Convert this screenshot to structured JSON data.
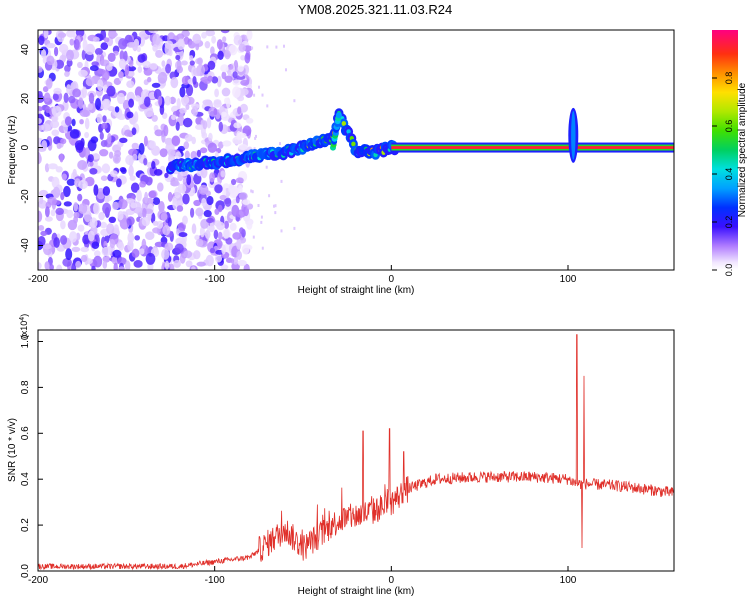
{
  "title": "YM08.2025.321.11.03.R24",
  "chart_data": [
    {
      "type": "heatmap",
      "title": "YM08.2025.321.11.03.R24",
      "xlabel": "Height of straight line (km)",
      "ylabel": "Frequency (Hz)",
      "xlim": [
        -200,
        160
      ],
      "ylim": [
        -50,
        48
      ],
      "x_ticks": [
        -200,
        -100,
        0,
        100
      ],
      "y_ticks": [
        -40,
        -20,
        0,
        20,
        40
      ],
      "x_tick_labels": [
        "-200",
        "-100",
        "0",
        "100"
      ],
      "y_tick_labels": [
        "-40",
        "-20",
        "0",
        "20",
        "40"
      ],
      "colorbar": {
        "label": "Normalized spectral amplitude",
        "range": [
          0,
          1
        ],
        "ticks": [
          0.0,
          0.2,
          0.4,
          0.6,
          0.8
        ],
        "tick_labels": [
          "0.0",
          "0.2",
          "0.4",
          "0.6",
          "0.8"
        ]
      },
      "features": {
        "noise_region_x": [
          -200,
          -80
        ],
        "transition_track": [
          [
            -125,
            -8
          ],
          [
            -100,
            -6
          ],
          [
            -80,
            -4
          ],
          [
            -60,
            -2
          ],
          [
            -45,
            1
          ],
          [
            -33,
            4
          ],
          [
            -30,
            14
          ],
          [
            -20,
            -1
          ],
          [
            -10,
            -2
          ],
          [
            0,
            0
          ]
        ],
        "carrier_line": {
          "x": [
            0,
            160
          ],
          "frequency": 0
        },
        "burst": {
          "x": 103,
          "freq_range": [
            -5,
            15
          ]
        }
      }
    },
    {
      "type": "line",
      "xlabel": "Height of straight line (km)",
      "ylabel": "SNR (10 * v/v)",
      "y_scale_label": "(x10",
      "y_scale_exp": "4",
      "y_scale_close": ")",
      "xlim": [
        -200,
        160
      ],
      "ylim": [
        0,
        1.05
      ],
      "x_ticks": [
        -200,
        -100,
        0,
        100
      ],
      "y_ticks": [
        0.0,
        0.2,
        0.4,
        0.6,
        0.8,
        1.0
      ],
      "x_tick_labels": [
        "-200",
        "-100",
        "0",
        "100"
      ],
      "y_tick_labels": [
        "0.0",
        "0.2",
        "0.4",
        "0.6",
        "0.8",
        "1.0"
      ],
      "series": [
        {
          "name": "SNR",
          "color": "#e0302a",
          "envelope": [
            [
              -200,
              0.02
            ],
            [
              -120,
              0.02
            ],
            [
              -100,
              0.04
            ],
            [
              -80,
              0.06
            ],
            [
              -70,
              0.12
            ],
            [
              -60,
              0.18
            ],
            [
              -50,
              0.1
            ],
            [
              -40,
              0.16
            ],
            [
              -30,
              0.22
            ],
            [
              -20,
              0.24
            ],
            [
              -10,
              0.26
            ],
            [
              0,
              0.3
            ],
            [
              10,
              0.36
            ],
            [
              25,
              0.4
            ],
            [
              50,
              0.41
            ],
            [
              80,
              0.41
            ],
            [
              100,
              0.4
            ],
            [
              105,
              0.38
            ],
            [
              110,
              0.38
            ],
            [
              130,
              0.37
            ],
            [
              160,
              0.34
            ]
          ],
          "spikes": [
            [
              -16,
              0.61
            ],
            [
              -1,
              0.62
            ],
            [
              7,
              0.52
            ],
            [
              105,
              1.03
            ],
            [
              109,
              0.85
            ],
            [
              108,
              0.1
            ]
          ]
        }
      ]
    }
  ]
}
